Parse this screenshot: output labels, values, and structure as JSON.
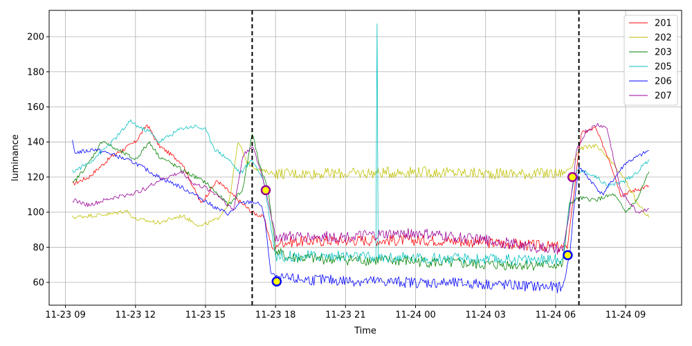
{
  "chart_data": {
    "type": "line",
    "title": "",
    "xlabel": "Time",
    "ylabel": "luminance",
    "x_tick_labels": [
      "11-23 09",
      "11-23 12",
      "11-23 15",
      "11-23 18",
      "11-23 21",
      "11-24 00",
      "11-24 03",
      "11-24 06",
      "11-24 09"
    ],
    "x_tick_hours": [
      0,
      3,
      6,
      9,
      12,
      15,
      18,
      21,
      24
    ],
    "xlim_hours": [
      -0.7,
      26.4
    ],
    "y_ticks": [
      60,
      80,
      100,
      120,
      140,
      160,
      180,
      200
    ],
    "ylim": [
      47,
      215
    ],
    "grid": true,
    "legend_position": "top-right",
    "vertical_lines_hours": [
      8.0,
      22.0
    ],
    "series": [
      {
        "name": "201",
        "color": "#ff0000",
        "points": [
          [
            0.3,
            116
          ],
          [
            1,
            120
          ],
          [
            2,
            132
          ],
          [
            3,
            140
          ],
          [
            3.5,
            150
          ],
          [
            4,
            138
          ],
          [
            5,
            128
          ],
          [
            5.8,
            105
          ],
          [
            6.5,
            118
          ],
          [
            7.3,
            108
          ],
          [
            8.0,
            100
          ],
          [
            8.5,
            97
          ],
          [
            8.9,
            78
          ],
          [
            9.2,
            83
          ],
          [
            12,
            84
          ],
          [
            16,
            84
          ],
          [
            19,
            82
          ],
          [
            21.3,
            80
          ],
          [
            21.5,
            80
          ],
          [
            22.1,
            145
          ],
          [
            22.7,
            148
          ],
          [
            23.3,
            130
          ],
          [
            23.8,
            110
          ],
          [
            24.5,
            113
          ],
          [
            25,
            115
          ]
        ]
      },
      {
        "name": "202",
        "color": "#bfbf00",
        "points": [
          [
            0.3,
            97
          ],
          [
            1,
            98
          ],
          [
            2,
            99
          ],
          [
            2.6,
            101
          ],
          [
            3,
            96
          ],
          [
            4,
            94
          ],
          [
            5,
            98
          ],
          [
            5.8,
            92
          ],
          [
            6.5,
            96
          ],
          [
            7.0,
            105
          ],
          [
            7.4,
            140
          ],
          [
            7.8,
            128
          ],
          [
            8.3,
            124
          ],
          [
            9,
            122
          ],
          [
            12,
            122
          ],
          [
            15,
            123
          ],
          [
            18,
            122
          ],
          [
            21.3,
            122
          ],
          [
            21.7,
            126
          ],
          [
            22,
            136
          ],
          [
            22.7,
            138
          ],
          [
            23.3,
            130
          ],
          [
            24,
            118
          ],
          [
            24.5,
            105
          ],
          [
            25,
            97
          ]
        ]
      },
      {
        "name": "203",
        "color": "#008000",
        "points": [
          [
            0.3,
            116
          ],
          [
            1,
            128
          ],
          [
            1.6,
            141
          ],
          [
            2,
            137
          ],
          [
            3,
            130
          ],
          [
            3.6,
            140
          ],
          [
            4,
            132
          ],
          [
            5,
            124
          ],
          [
            6,
            117
          ],
          [
            7,
            104
          ],
          [
            7.6,
            113
          ],
          [
            8.0,
            145
          ],
          [
            8.3,
            128
          ],
          [
            8.7,
            112
          ],
          [
            9.0,
            78
          ],
          [
            9.5,
            74
          ],
          [
            12,
            73
          ],
          [
            15,
            72
          ],
          [
            18,
            70
          ],
          [
            21.3,
            70
          ],
          [
            21.6,
            105
          ],
          [
            22,
            108
          ],
          [
            22.7,
            107
          ],
          [
            23.5,
            110
          ],
          [
            24,
            100
          ],
          [
            24.5,
            107
          ],
          [
            25,
            123
          ]
        ]
      },
      {
        "name": "205",
        "color": "#00bfbf",
        "points": [
          [
            0.3,
            123
          ],
          [
            1,
            128
          ],
          [
            2,
            140
          ],
          [
            2.8,
            152
          ],
          [
            3.2,
            148
          ],
          [
            3.6,
            146
          ],
          [
            4,
            140
          ],
          [
            5,
            148
          ],
          [
            5.6,
            149
          ],
          [
            6,
            147
          ],
          [
            6.4,
            136
          ],
          [
            7,
            130
          ],
          [
            7.5,
            122
          ],
          [
            8,
            130
          ],
          [
            8.5,
            118
          ],
          [
            9.0,
            75
          ],
          [
            12,
            75
          ],
          [
            13.3,
            74
          ],
          [
            13.35,
            207
          ],
          [
            13.4,
            74
          ],
          [
            15,
            74
          ],
          [
            18,
            73
          ],
          [
            21.3,
            73
          ],
          [
            21.6,
            105
          ],
          [
            21.9,
            124
          ],
          [
            22.5,
            122
          ],
          [
            23.3,
            115
          ],
          [
            24,
            118
          ],
          [
            24.5,
            123
          ],
          [
            25,
            130
          ]
        ]
      },
      {
        "name": "206",
        "color": "#0000ff",
        "points": [
          [
            0.3,
            140
          ],
          [
            0.4,
            134
          ],
          [
            1,
            135
          ],
          [
            1.2,
            136
          ],
          [
            2,
            133
          ],
          [
            3,
            128
          ],
          [
            4,
            120
          ],
          [
            5,
            114
          ],
          [
            5.8,
            108
          ],
          [
            6.5,
            102
          ],
          [
            7.0,
            99
          ],
          [
            7.5,
            105
          ],
          [
            8.0,
            106
          ],
          [
            8.4,
            104
          ],
          [
            8.6,
            90
          ],
          [
            8.8,
            65
          ],
          [
            9.2,
            62
          ],
          [
            12,
            61
          ],
          [
            15,
            60
          ],
          [
            18,
            59
          ],
          [
            21.3,
            57
          ],
          [
            21.6,
            75
          ],
          [
            21.8,
            105
          ],
          [
            22.0,
            126
          ],
          [
            22.5,
            118
          ],
          [
            23,
            110
          ],
          [
            24,
            128
          ],
          [
            25,
            135
          ]
        ]
      },
      {
        "name": "207",
        "color": "#990099",
        "points": [
          [
            0.3,
            107
          ],
          [
            1,
            104
          ],
          [
            2,
            108
          ],
          [
            3,
            111
          ],
          [
            3.5,
            114
          ],
          [
            4,
            118
          ],
          [
            5,
            123
          ],
          [
            5.5,
            116
          ],
          [
            6,
            114
          ],
          [
            6.6,
            109
          ],
          [
            7.2,
            101
          ],
          [
            7.6,
            132
          ],
          [
            8.0,
            138
          ],
          [
            8.4,
            122
          ],
          [
            8.6,
            112
          ],
          [
            9.0,
            86
          ],
          [
            12,
            86
          ],
          [
            15,
            88
          ],
          [
            18,
            84
          ],
          [
            21.3,
            78
          ],
          [
            21.6,
            100
          ],
          [
            21.9,
            135
          ],
          [
            22.3,
            146
          ],
          [
            22.8,
            150
          ],
          [
            23.2,
            148
          ],
          [
            23.8,
            112
          ],
          [
            24.5,
            100
          ],
          [
            25,
            102
          ]
        ]
      }
    ],
    "markers": [
      {
        "x": 8.58,
        "y": 112.5,
        "fill": "#ffff00",
        "edge": "#990099"
      },
      {
        "x": 9.05,
        "y": 60.5,
        "fill": "#ffff00",
        "edge": "#0000ff"
      },
      {
        "x": 21.52,
        "y": 75.5,
        "fill": "#ffff00",
        "edge": "#0000ff"
      },
      {
        "x": 21.72,
        "y": 120,
        "fill": "#ffff00",
        "edge": "#990099"
      }
    ]
  }
}
